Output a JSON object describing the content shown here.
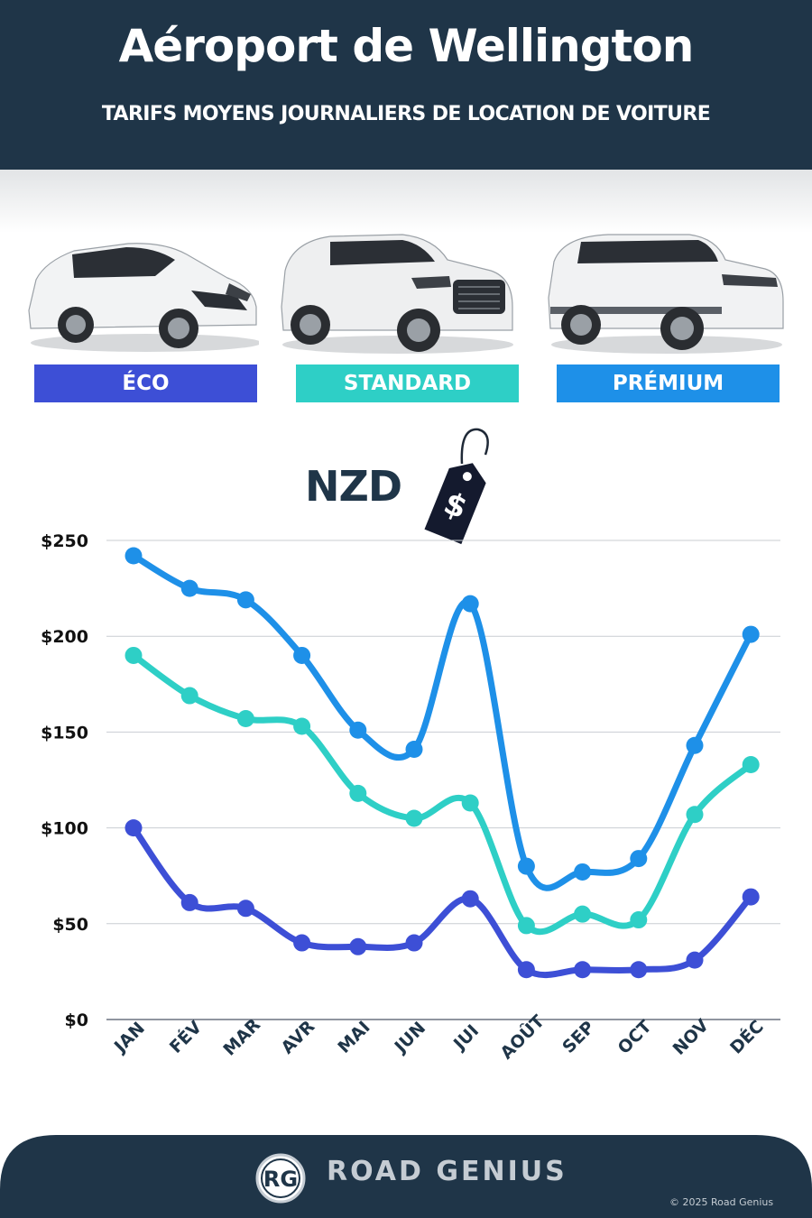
{
  "header": {
    "title": "Aéroport de Wellington",
    "subtitle": "TARIFS MOYENS JOURNALIERS DE LOCATION DE VOITURE"
  },
  "categories": [
    {
      "label": "ÉCO",
      "color": "#3d4fd6"
    },
    {
      "label": "STANDARD",
      "color": "#2ecfc6"
    },
    {
      "label": "PRÉMIUM",
      "color": "#1e90e8"
    }
  ],
  "currency_label": "NZD",
  "price_tag_symbol": "$",
  "chart_data": {
    "type": "line",
    "categories": [
      "JAN",
      "FÉV",
      "MAR",
      "AVR",
      "MAI",
      "JUN",
      "JUI",
      "AOÛT",
      "SEP",
      "OCT",
      "NOV",
      "DÉC"
    ],
    "series": [
      {
        "name": "PRÉMIUM",
        "color": "#1e90e8",
        "values": [
          242,
          225,
          219,
          190,
          151,
          141,
          217,
          80,
          77,
          84,
          143,
          201
        ]
      },
      {
        "name": "STANDARD",
        "color": "#2ecfc6",
        "values": [
          190,
          169,
          157,
          153,
          118,
          105,
          113,
          49,
          55,
          52,
          107,
          133
        ]
      },
      {
        "name": "ÉCO",
        "color": "#3d4fd6",
        "values": [
          100,
          61,
          58,
          40,
          38,
          40,
          63,
          26,
          26,
          26,
          31,
          64
        ]
      }
    ],
    "y_ticks": [
      "$0",
      "$50",
      "$100",
      "$150",
      "$200",
      "$250"
    ],
    "y_tick_values": [
      0,
      50,
      100,
      150,
      200,
      250
    ],
    "ylim": [
      0,
      250
    ],
    "grid": true
  },
  "footer": {
    "logo_text": "RG",
    "brand": "ROAD GENIUS",
    "copyright": "© 2025 Road Genius",
    "background": "#1f3548"
  }
}
